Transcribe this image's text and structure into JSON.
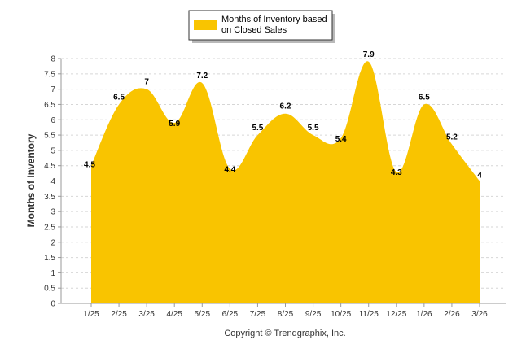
{
  "chart_data": {
    "type": "area",
    "title": "",
    "categories": [
      "1/25",
      "2/25",
      "3/25",
      "4/25",
      "5/25",
      "6/25",
      "7/25",
      "8/25",
      "9/25",
      "10/25",
      "11/25",
      "12/25",
      "1/26",
      "2/26",
      "3/26"
    ],
    "series": [
      {
        "name": "Months of Inventory based on Closed Sales",
        "values": [
          4.5,
          6.5,
          7,
          5.9,
          7.2,
          4.4,
          5.5,
          6.2,
          5.5,
          5.4,
          7.9,
          4.3,
          6.5,
          5.2,
          4
        ],
        "data_labels": [
          "4.5",
          "6.5",
          "7",
          "5.9",
          "7.2",
          "4.4",
          "5.5",
          "6.2",
          "5.5",
          "5.4",
          "7.9",
          "4.3",
          "6.5",
          "5.2",
          "4"
        ],
        "color": "#f9c400"
      }
    ],
    "xlabel": "",
    "ylabel": "Months of Inventory",
    "ylim": [
      0,
      8
    ],
    "y_ticks": [
      "0",
      "0.5",
      "1",
      "1.5",
      "2",
      "2.5",
      "3",
      "3.5",
      "4",
      "4.5",
      "5",
      "5.5",
      "6",
      "6.5",
      "7",
      "7.5",
      "8"
    ],
    "legend": {
      "position": "top-center",
      "line1": "Months of Inventory based",
      "line2": "on Closed Sales"
    },
    "grid": true
  },
  "footer": {
    "copyright": "Copyright © Trendgraphix, Inc."
  }
}
